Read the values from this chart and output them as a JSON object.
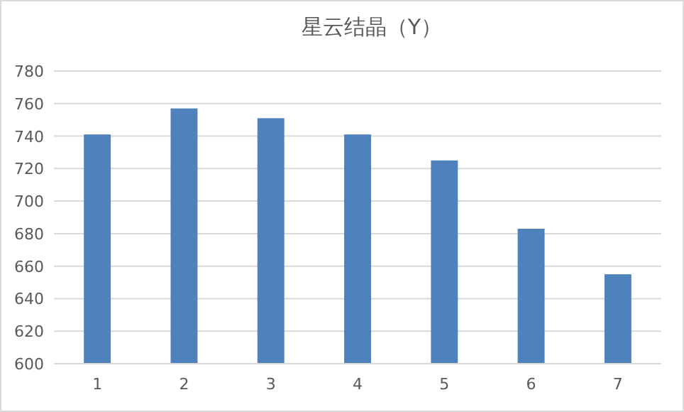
{
  "chart_data": {
    "type": "bar",
    "title": "星云结晶（Y）",
    "categories": [
      "1",
      "2",
      "3",
      "4",
      "5",
      "6",
      "7"
    ],
    "values": [
      741,
      757,
      751,
      741,
      725,
      683,
      655
    ],
    "color": "#4f81bd",
    "ylim": [
      600,
      780
    ],
    "yticks": [
      600,
      620,
      640,
      660,
      680,
      700,
      720,
      740,
      760,
      780
    ],
    "grid": "y"
  }
}
